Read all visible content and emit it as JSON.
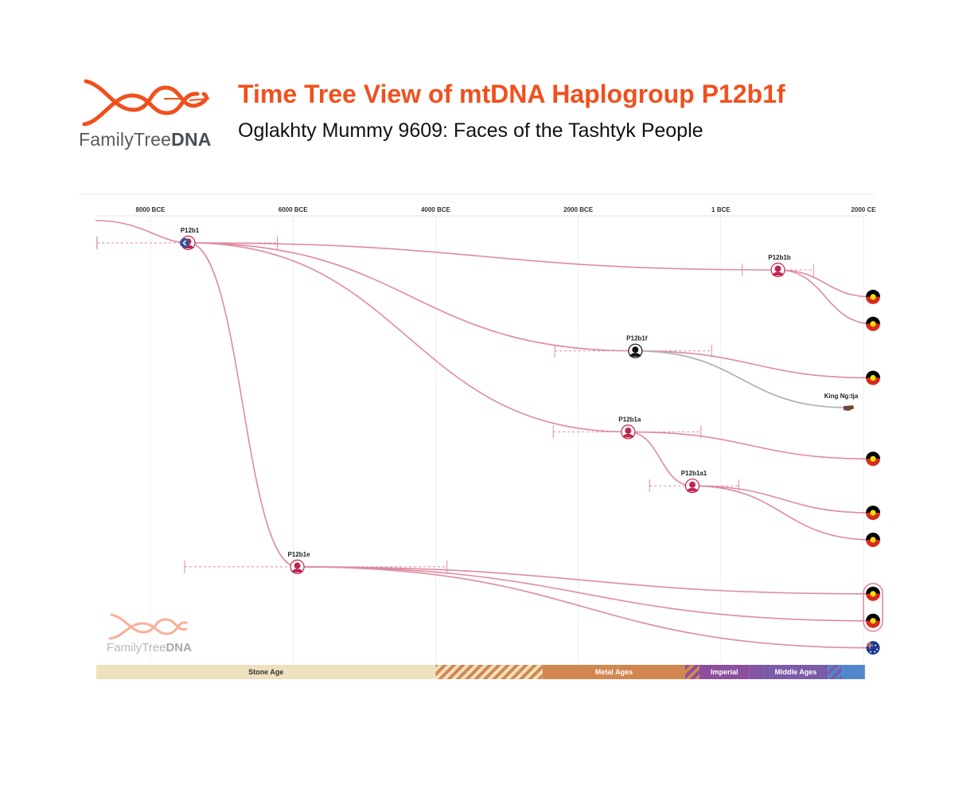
{
  "header": {
    "brand_prefix": "FamilyTree",
    "brand_suffix": "DNA",
    "title": "Time Tree View of mtDNA Haplogroup P12b1f",
    "subtitle": "Oglakhty Mummy 9609: Faces of the Tashtyk People"
  },
  "axis": {
    "ticks": [
      {
        "label": "8000 BCE",
        "year": -8000
      },
      {
        "label": "6000 BCE",
        "year": -6000
      },
      {
        "label": "4000 BCE",
        "year": -4000
      },
      {
        "label": "2000 BCE",
        "year": -2000
      },
      {
        "label": "1 BCE",
        "year": 0
      },
      {
        "label": "2000 CE",
        "year": 2000
      }
    ]
  },
  "nodes": [
    {
      "id": "P12b1",
      "label": "P12b1",
      "year": -7470,
      "row": 0,
      "range": [
        -8750,
        -6220
      ],
      "style": "haplo"
    },
    {
      "id": "P12b1b",
      "label": "P12b1b",
      "year": 800,
      "row": 1,
      "range": [
        300,
        1300
      ],
      "style": "haplo"
    },
    {
      "id": "P12b1f",
      "label": "P12b1f",
      "year": -1200,
      "row": 4,
      "range": [
        -2330,
        -130
      ],
      "style": "highlight"
    },
    {
      "id": "P12b1a",
      "label": "P12b1a",
      "year": -1300,
      "row": 7,
      "range": [
        -2350,
        -280
      ],
      "style": "haplo"
    },
    {
      "id": "P12b1a1",
      "label": "P12b1a1",
      "year": -400,
      "row": 9,
      "range": [
        -1000,
        250
      ],
      "style": "haplo"
    },
    {
      "id": "P12b1e",
      "label": "P12b1e",
      "year": -5940,
      "row": 12,
      "range": [
        -7520,
        -3840
      ],
      "style": "haplo"
    }
  ],
  "leaves": [
    {
      "parent": "P12b1b",
      "row": 2,
      "flag": "aboriginal-flag"
    },
    {
      "parent": "P12b1b",
      "row": 3,
      "flag": "aboriginal-flag"
    },
    {
      "parent": "P12b1f",
      "row": 5,
      "flag": "aboriginal-flag"
    },
    {
      "parent": "P12b1a",
      "row": 8,
      "flag": "aboriginal-flag"
    },
    {
      "parent": "P12b1a1",
      "row": 10,
      "flag": "aboriginal-flag"
    },
    {
      "parent": "P12b1a1",
      "row": 11,
      "flag": "aboriginal-flag"
    },
    {
      "parent": "P12b1e",
      "row": 13,
      "flag": "aboriginal-flag"
    },
    {
      "parent": "P12b1e",
      "row": 14,
      "flag": "aboriginal-flag"
    },
    {
      "parent": "P12b1e",
      "row": 15,
      "flag": "australia-flag"
    }
  ],
  "ancient_sample": {
    "parent": "P12b1f",
    "label": "King Ng:tja",
    "icon": "remains-icon"
  },
  "eras": [
    {
      "label": "Stone Age",
      "start": -9000,
      "end": -4000,
      "color": "#efe0bf",
      "text_color": "#333333"
    },
    {
      "label": "",
      "start": -4000,
      "end": -2500,
      "color": "hatch-stone-metal",
      "text_color": ""
    },
    {
      "label": "Metal Ages",
      "start": -2500,
      "end": -500,
      "color": "#d2874f",
      "text_color": "#ffffff"
    },
    {
      "label": "",
      "start": -500,
      "end": -300,
      "color": "hatch-metal-imperial",
      "text_color": ""
    },
    {
      "label": "Imperial",
      "start": -300,
      "end": 400,
      "color": "#8b4f9d",
      "text_color": "#ffffff"
    },
    {
      "label": "",
      "start": 400,
      "end": 600,
      "color": "hatch-imperial-middle",
      "text_color": ""
    },
    {
      "label": "Middle Ages",
      "start": 600,
      "end": 1500,
      "color": "#7a5ba8",
      "text_color": "#ffffff"
    },
    {
      "label": "",
      "start": 1500,
      "end": 1700,
      "color": "hatch-middle-modern",
      "text_color": ""
    },
    {
      "label": "",
      "start": 1700,
      "end": 2020,
      "color": "#5087cc",
      "text_color": ""
    }
  ],
  "colors": {
    "accent": "#f0501e",
    "branch": "#df8aa0",
    "haplo_node": "#c0264e",
    "ancient_branch": "#b3b3b3",
    "flag_black": "#000000",
    "flag_red": "#d62b1f",
    "flag_yellow": "#ffde00"
  }
}
